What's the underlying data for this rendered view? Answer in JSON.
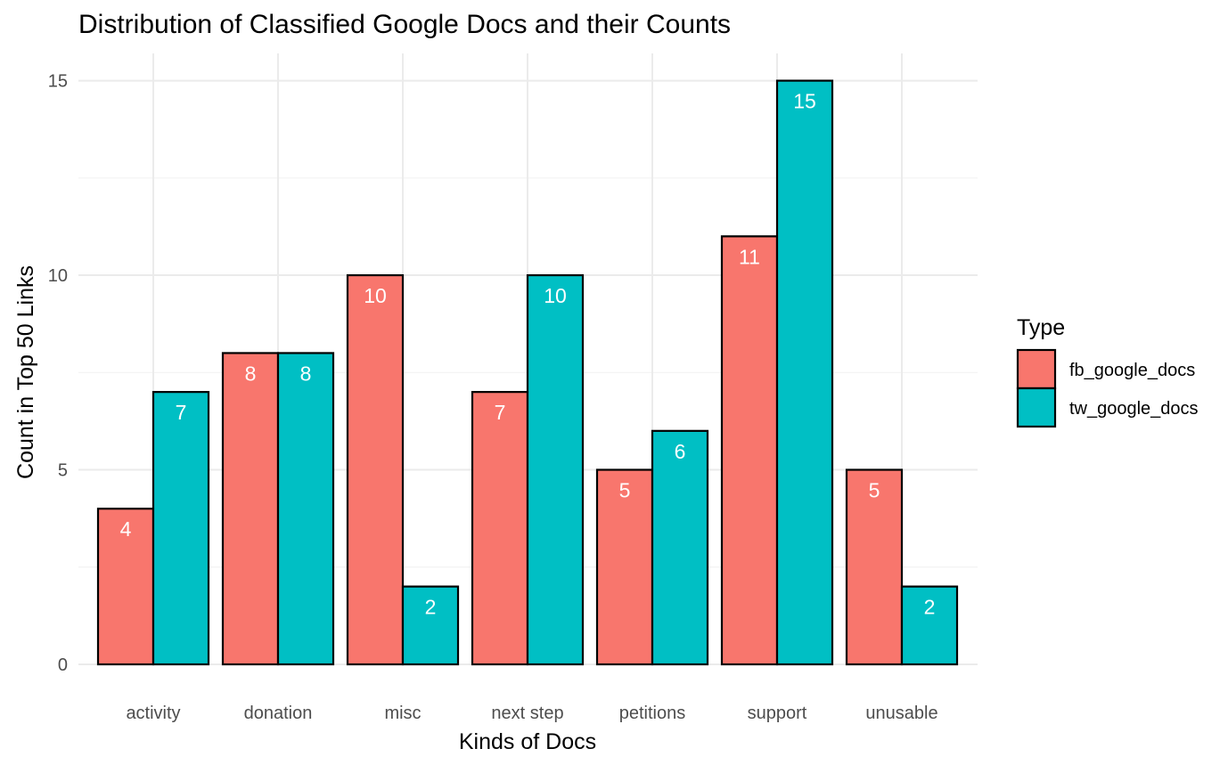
{
  "chart_data": {
    "type": "bar",
    "title": "Distribution of Classified Google Docs and their Counts",
    "xlabel": "Kinds of Docs",
    "ylabel": "Count in Top 50 Links",
    "categories": [
      "activity",
      "donation",
      "misc",
      "next step",
      "petitions",
      "support",
      "unusable"
    ],
    "series": [
      {
        "name": "fb_google_docs",
        "color": "#F8766D",
        "values": [
          4,
          8,
          10,
          7,
          5,
          11,
          5
        ]
      },
      {
        "name": "tw_google_docs",
        "color": "#00BFC4",
        "values": [
          7,
          8,
          2,
          10,
          6,
          15,
          2
        ]
      }
    ],
    "ylim": [
      0,
      15.7
    ],
    "y_ticks": [
      0,
      5,
      10,
      15
    ],
    "grid": true,
    "legend": {
      "title": "Type",
      "position": "right"
    }
  }
}
